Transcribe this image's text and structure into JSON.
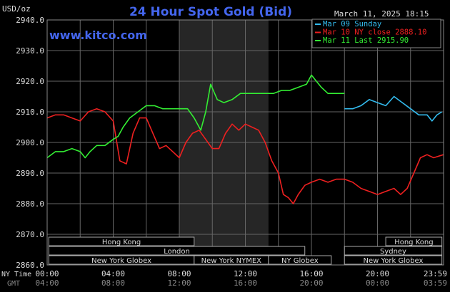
{
  "chart_data": {
    "type": "line",
    "title": "24 Hour Spot Gold (Bid)",
    "ylabel": "USD/oz",
    "watermark": "www.kitco.com",
    "date_stamp": "March 11, 2025 18:15",
    "ylim": [
      2860,
      2940
    ],
    "y_ticks": [
      "2940.0",
      "2930.0",
      "2920.0",
      "2910.0",
      "2900.0",
      "2890.0",
      "2880.0",
      "2870.0",
      "2860.0"
    ],
    "x_axis_label": "NY Time",
    "x_ticks": [
      "00:00",
      "04:00",
      "08:00",
      "12:00",
      "16:00",
      "20:00",
      "23:59"
    ],
    "gmt_label": "GMT",
    "gmt_ticks": [
      "04:00",
      "08:00",
      "12:00",
      "16:00",
      "20:00",
      "00:00",
      "03:59"
    ],
    "grid": true,
    "legend_position": "top-right",
    "series": [
      {
        "name": "Mar 09 Sunday",
        "color": "#33bbee",
        "points": [
          [
            18.0,
            2911
          ],
          [
            18.5,
            2911
          ],
          [
            19.0,
            2912
          ],
          [
            19.5,
            2914
          ],
          [
            20.0,
            2913
          ],
          [
            20.5,
            2912
          ],
          [
            21.0,
            2915
          ],
          [
            21.5,
            2913
          ],
          [
            22.0,
            2911
          ],
          [
            22.5,
            2909
          ],
          [
            23.0,
            2909
          ],
          [
            23.3,
            2907
          ],
          [
            23.6,
            2909
          ],
          [
            23.9,
            2910
          ]
        ]
      },
      {
        "name": "Mar 10 NY close 2888.10",
        "color": "#ee2020",
        "points": [
          [
            0.0,
            2908
          ],
          [
            0.5,
            2909
          ],
          [
            1.0,
            2909
          ],
          [
            1.5,
            2908
          ],
          [
            2.0,
            2907
          ],
          [
            2.5,
            2910
          ],
          [
            3.0,
            2911
          ],
          [
            3.5,
            2910
          ],
          [
            4.0,
            2907
          ],
          [
            4.4,
            2894
          ],
          [
            4.8,
            2893
          ],
          [
            5.2,
            2903
          ],
          [
            5.6,
            2908
          ],
          [
            6.0,
            2908
          ],
          [
            6.4,
            2903
          ],
          [
            6.8,
            2898
          ],
          [
            7.2,
            2899
          ],
          [
            7.6,
            2897
          ],
          [
            8.0,
            2895
          ],
          [
            8.4,
            2900
          ],
          [
            8.8,
            2903
          ],
          [
            9.2,
            2904
          ],
          [
            9.6,
            2901
          ],
          [
            10.0,
            2898
          ],
          [
            10.4,
            2898
          ],
          [
            10.8,
            2903
          ],
          [
            11.2,
            2906
          ],
          [
            11.6,
            2904
          ],
          [
            12.0,
            2906
          ],
          [
            12.4,
            2905
          ],
          [
            12.8,
            2904
          ],
          [
            13.2,
            2900
          ],
          [
            13.6,
            2894
          ],
          [
            14.0,
            2890
          ],
          [
            14.3,
            2883
          ],
          [
            14.6,
            2882
          ],
          [
            14.9,
            2880
          ],
          [
            15.2,
            2883
          ],
          [
            15.6,
            2886
          ],
          [
            16.0,
            2887
          ],
          [
            16.5,
            2888
          ],
          [
            17.0,
            2887
          ],
          [
            17.5,
            2888
          ],
          [
            18.0,
            2888
          ],
          [
            18.5,
            2887
          ],
          [
            19.0,
            2885
          ],
          [
            19.5,
            2884
          ],
          [
            20.0,
            2883
          ],
          [
            20.5,
            2884
          ],
          [
            21.0,
            2885
          ],
          [
            21.4,
            2883
          ],
          [
            21.8,
            2885
          ],
          [
            22.2,
            2890
          ],
          [
            22.6,
            2895
          ],
          [
            23.0,
            2896
          ],
          [
            23.4,
            2895
          ],
          [
            23.99,
            2896
          ]
        ]
      },
      {
        "name": "Mar 11 Last 2915.90",
        "color": "#33ee33",
        "points": [
          [
            0.0,
            2895
          ],
          [
            0.5,
            2897
          ],
          [
            1.0,
            2897
          ],
          [
            1.5,
            2898
          ],
          [
            2.0,
            2897
          ],
          [
            2.3,
            2895
          ],
          [
            2.6,
            2897
          ],
          [
            3.0,
            2899
          ],
          [
            3.5,
            2899
          ],
          [
            4.0,
            2901
          ],
          [
            4.3,
            2902
          ],
          [
            4.6,
            2905
          ],
          [
            5.0,
            2908
          ],
          [
            5.5,
            2910
          ],
          [
            6.0,
            2912
          ],
          [
            6.5,
            2912
          ],
          [
            7.0,
            2911
          ],
          [
            7.5,
            2911
          ],
          [
            8.0,
            2911
          ],
          [
            8.5,
            2911
          ],
          [
            8.9,
            2908
          ],
          [
            9.3,
            2904
          ],
          [
            9.6,
            2910
          ],
          [
            9.9,
            2919
          ],
          [
            10.3,
            2914
          ],
          [
            10.7,
            2913
          ],
          [
            11.2,
            2914
          ],
          [
            11.7,
            2916
          ],
          [
            12.2,
            2916
          ],
          [
            12.7,
            2916
          ],
          [
            13.2,
            2916
          ],
          [
            13.7,
            2916
          ],
          [
            14.2,
            2917
          ],
          [
            14.7,
            2917
          ],
          [
            15.2,
            2918
          ],
          [
            15.7,
            2919
          ],
          [
            16.0,
            2922
          ],
          [
            16.3,
            2920
          ],
          [
            16.6,
            2918
          ],
          [
            17.0,
            2916
          ],
          [
            17.5,
            2916
          ],
          [
            18.0,
            2916
          ]
        ]
      }
    ],
    "market_sessions": [
      {
        "name": "Hong Kong",
        "open": 0.1,
        "close": 8.9,
        "row": 1
      },
      {
        "name": "London",
        "open": 0.1,
        "close": 15.6,
        "row": 2
      },
      {
        "name": "New York Globex",
        "open": 0.1,
        "close": 8.9,
        "row": 3
      },
      {
        "name": "New York NYMEX",
        "open": 8.9,
        "close": 13.4,
        "row": 3
      },
      {
        "name": "NY Globex",
        "open": 13.4,
        "close": 17.2,
        "row": 3
      },
      {
        "name": "Hong Kong",
        "open": 20.5,
        "close": 23.9,
        "row": 1
      },
      {
        "name": "Sydney",
        "open": 18.0,
        "close": 23.9,
        "row": 2
      },
      {
        "name": "New York Globex",
        "open": 18.0,
        "close": 23.9,
        "row": 3
      }
    ],
    "nymex_band": [
      8.0,
      13.4
    ]
  }
}
